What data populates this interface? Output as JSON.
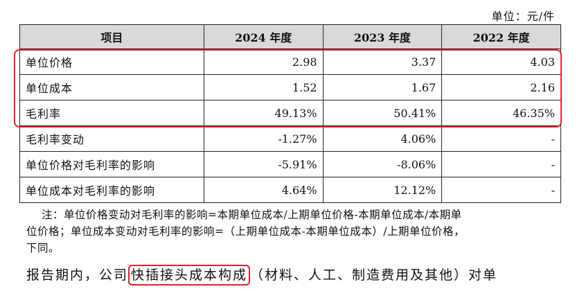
{
  "unit": "单位：元/件",
  "table": {
    "headers": [
      "项目",
      "2024 年度",
      "2023 年度",
      "2022 年度"
    ],
    "rows": [
      {
        "label": "单位价格",
        "values": [
          "2.98",
          "3.37",
          "4.03"
        ]
      },
      {
        "label": "单位成本",
        "values": [
          "1.52",
          "1.67",
          "2.16"
        ]
      },
      {
        "label": "毛利率",
        "values": [
          "49.13%",
          "50.41%",
          "46.35%"
        ]
      },
      {
        "label": "毛利率变动",
        "values": [
          "-1.27%",
          "4.06%",
          "-"
        ]
      },
      {
        "label": "单位价格对毛利率的影响",
        "values": [
          "-5.91%",
          "-8.06%",
          "-"
        ]
      },
      {
        "label": "单位成本对毛利率的影响",
        "values": [
          "4.64%",
          "12.12%",
          "-"
        ]
      }
    ]
  },
  "note": {
    "line1": "注：单位价格变动对毛利率的影响=本期单位成本/上期单位价格-本期单位成本/本期单",
    "line2": "位价格；单位成本变动对毛利率的影响=（上期单位成本-本期单位成本）/上期单位价格，",
    "line3": "下同。"
  },
  "paragraph": {
    "before": "报告期内，公司",
    "boxed": "快插接头成本构成",
    "after": "（材料、人工、制造费用及其他）对单"
  },
  "highlight_color": "#e0202a"
}
